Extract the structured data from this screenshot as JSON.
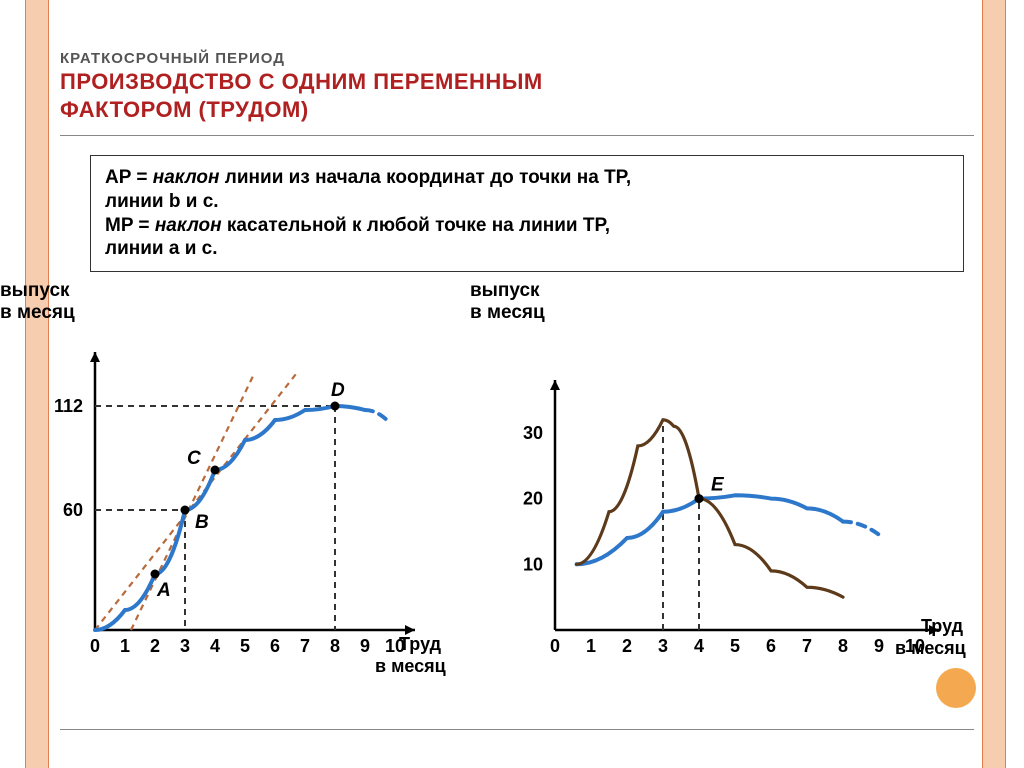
{
  "subtitle": "КРАТКОСРОЧНЫЙ ПЕРИОД",
  "title_line1": "ПРОИЗВОДСТВО С ОДНИМ  ПЕРЕМЕННЫМ",
  "title_line2": "ФАКТОРОМ  (ТРУДОМ)",
  "textbox": {
    "line1_pre": "AP = ",
    "line1_em": "наклон",
    "line1_post": " линии из начала координат до точки на TP,",
    "line2": "линии b и c.",
    "line3_pre": "MP = ",
    "line3_em": "наклон",
    "line3_post": " касательной к любой точке на линии TP,",
    "line4": "линии a и c."
  },
  "y_label_left_l1": "выпуск",
  "y_label_left_l2": "в месяц",
  "y_label_right_l1": "выпуск",
  "y_label_right_l2": "в месяц",
  "x_label_l1": "Труд",
  "x_label_l2": "в месяц",
  "colors": {
    "title": "#b02020",
    "stripe_bg": "#f7cdb0",
    "tp_curve": "#2d78ca",
    "tangent": "#b86a3a",
    "mp_curve": "#5c3a1a",
    "ap_curve": "#2d78ca",
    "axis": "#000000",
    "dash": "#333333",
    "circle": "#f4a950"
  },
  "chart_left": {
    "type": "line",
    "xlim": [
      0,
      10
    ],
    "ylim": [
      0,
      130
    ],
    "xticks": [
      0,
      1,
      2,
      3,
      4,
      5,
      6,
      7,
      8,
      9,
      10
    ],
    "yticks": [
      60,
      112
    ],
    "points": {
      "A": {
        "x": 2,
        "y": 28,
        "label": "A"
      },
      "B": {
        "x": 3,
        "y": 60,
        "label": "B"
      },
      "C": {
        "x": 4,
        "y": 80,
        "label": "C"
      },
      "D": {
        "x": 8,
        "y": 112,
        "label": "D"
      }
    },
    "tp_path": [
      [
        0,
        0
      ],
      [
        1,
        10
      ],
      [
        2,
        28
      ],
      [
        3,
        60
      ],
      [
        4,
        80
      ],
      [
        5,
        95
      ],
      [
        6,
        105
      ],
      [
        7,
        110
      ],
      [
        8,
        112
      ],
      [
        9,
        110
      ]
    ],
    "tp_dash_tail": [
      [
        9,
        110
      ],
      [
        9.8,
        104
      ]
    ],
    "tangent_c": [
      [
        0,
        0
      ],
      [
        6.7,
        128
      ]
    ],
    "tangent_a": [
      [
        1.2,
        0
      ],
      [
        5.3,
        128
      ]
    ],
    "line_width_tp": 4,
    "line_width_tan": 2.2,
    "dash_pattern": "6,5",
    "font_size_tick": 18,
    "font_size_pt": 19
  },
  "chart_right": {
    "type": "line",
    "xlim": [
      0,
      10
    ],
    "ylim": [
      0,
      35
    ],
    "xticks": [
      0,
      1,
      2,
      3,
      4,
      5,
      6,
      7,
      8,
      9,
      10
    ],
    "yticks": [
      10,
      20,
      30
    ],
    "points": {
      "E": {
        "x": 4,
        "y": 20,
        "label": "E"
      }
    },
    "mp_path": [
      [
        0.6,
        10
      ],
      [
        1.5,
        18
      ],
      [
        2.3,
        28
      ],
      [
        3,
        32
      ],
      [
        3.3,
        31
      ],
      [
        4,
        20
      ],
      [
        5,
        13
      ],
      [
        6,
        9
      ],
      [
        7,
        6.5
      ],
      [
        8,
        5
      ]
    ],
    "ap_path": [
      [
        0.6,
        10
      ],
      [
        2,
        14
      ],
      [
        3,
        18
      ],
      [
        4,
        20
      ],
      [
        5,
        20.5
      ],
      [
        6,
        20
      ],
      [
        7,
        18.5
      ],
      [
        8,
        16.5
      ]
    ],
    "ap_dash_tail": [
      [
        8,
        16.5
      ],
      [
        9,
        14.5
      ]
    ],
    "line_width_mp": 3.2,
    "line_width_ap": 4,
    "dash_vert": [
      3,
      4
    ],
    "font_size_tick": 18
  }
}
